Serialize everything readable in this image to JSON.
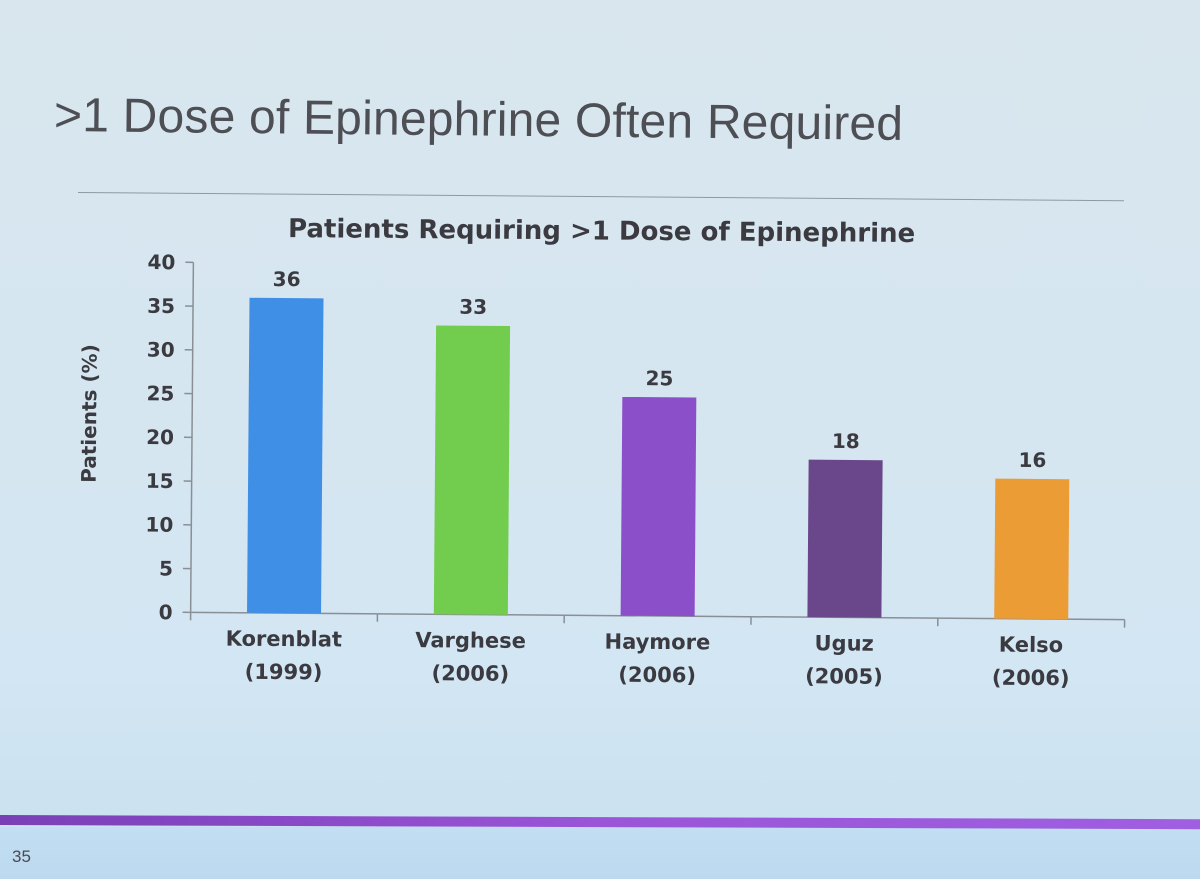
{
  "slide": {
    "title": ">1 Dose of Epinephrine Often Required",
    "number": "35",
    "accent_bar_color": "#8d4bcb"
  },
  "chart_data": {
    "type": "bar",
    "title": "Patients Requiring >1 Dose of Epinephrine",
    "xlabel": "",
    "ylabel": "Patients (%)",
    "ylim": [
      0,
      40
    ],
    "yticks": [
      0,
      5,
      10,
      15,
      20,
      25,
      30,
      35,
      40
    ],
    "grid": false,
    "categories": [
      {
        "name": "Korenblat",
        "year": "(1999)"
      },
      {
        "name": "Varghese",
        "year": "(2006)"
      },
      {
        "name": "Haymore",
        "year": "(2006)"
      },
      {
        "name": "Uguz",
        "year": "(2005)"
      },
      {
        "name": "Kelso",
        "year": "(2006)"
      }
    ],
    "values": [
      36,
      33,
      25,
      18,
      16
    ],
    "data_labels": [
      "36",
      "33",
      "25",
      "18",
      "16"
    ],
    "colors": [
      "#3f8fe6",
      "#72cc4e",
      "#8b4fc9",
      "#6a478a",
      "#eb9c35"
    ]
  }
}
